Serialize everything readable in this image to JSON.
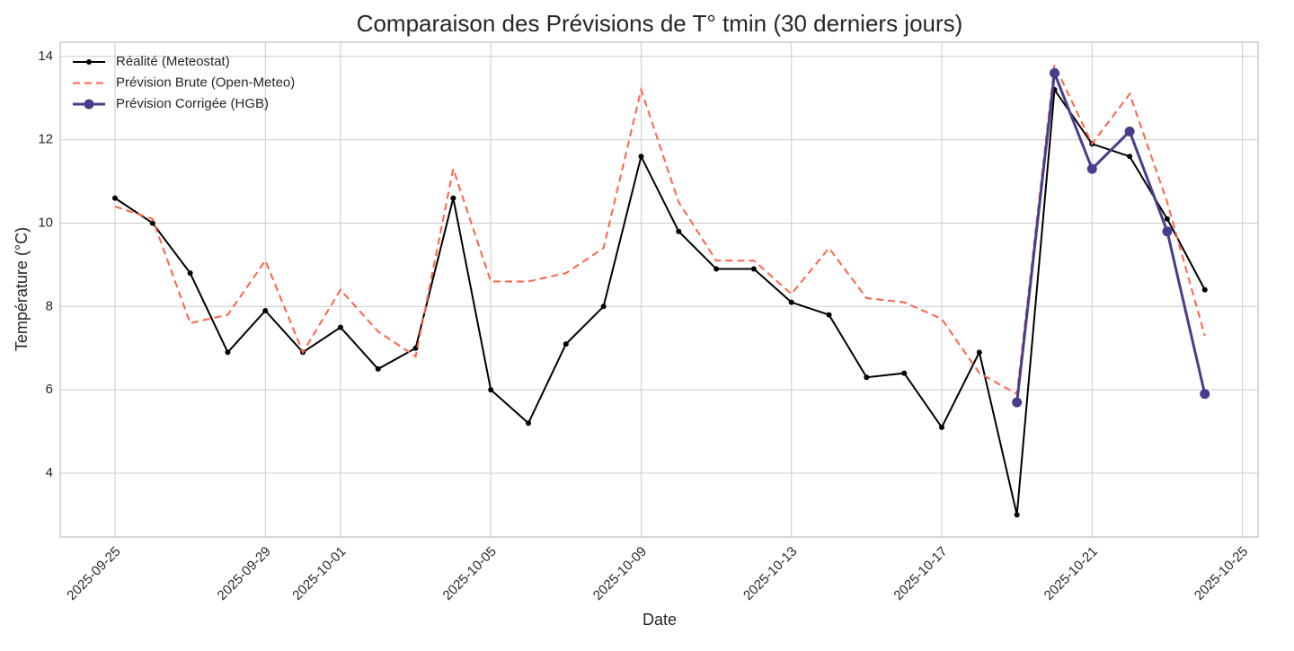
{
  "chart_data": {
    "type": "line",
    "title": "Comparaison des Prévisions de T° tmin (30 derniers jours)",
    "xlabel": "Date",
    "ylabel": "Température (°C)",
    "x": [
      "2025-09-25",
      "2025-09-26",
      "2025-09-27",
      "2025-09-28",
      "2025-09-29",
      "2025-09-30",
      "2025-10-01",
      "2025-10-02",
      "2025-10-03",
      "2025-10-04",
      "2025-10-05",
      "2025-10-06",
      "2025-10-07",
      "2025-10-08",
      "2025-10-09",
      "2025-10-10",
      "2025-10-11",
      "2025-10-12",
      "2025-10-13",
      "2025-10-14",
      "2025-10-15",
      "2025-10-16",
      "2025-10-17",
      "2025-10-18",
      "2025-10-19",
      "2025-10-20",
      "2025-10-21",
      "2025-10-22",
      "2025-10-23",
      "2025-10-24"
    ],
    "series": [
      {
        "name": "Réalité (Meteostat)",
        "color": "#000000",
        "linestyle": "solid",
        "marker": "small",
        "values": [
          10.6,
          10.0,
          8.8,
          6.9,
          7.9,
          6.9,
          7.5,
          6.5,
          7.0,
          10.6,
          6.0,
          5.2,
          7.1,
          8.0,
          11.6,
          9.8,
          8.9,
          8.9,
          8.1,
          7.8,
          6.3,
          6.4,
          5.1,
          6.9,
          3.0,
          13.2,
          11.9,
          11.6,
          10.1,
          8.4
        ]
      },
      {
        "name": "Prévision Brute (Open-Meteo)",
        "color": "#ff6347",
        "linestyle": "dashed",
        "marker": "none",
        "values": [
          10.4,
          10.1,
          7.6,
          7.8,
          9.1,
          6.9,
          8.4,
          7.4,
          6.8,
          11.3,
          8.6,
          8.6,
          8.8,
          9.4,
          13.2,
          10.5,
          9.1,
          9.1,
          8.3,
          9.4,
          8.2,
          8.1,
          7.7,
          6.4,
          5.9,
          13.8,
          11.9,
          13.1,
          10.5,
          7.3
        ]
      },
      {
        "name": "Prévision Corrigée (HGB)",
        "color": "#483d8b",
        "linestyle": "solid",
        "marker": "large",
        "values": [
          null,
          null,
          null,
          null,
          null,
          null,
          null,
          null,
          null,
          null,
          null,
          null,
          null,
          null,
          null,
          null,
          null,
          null,
          null,
          null,
          null,
          null,
          null,
          null,
          5.7,
          13.6,
          11.3,
          12.2,
          9.8,
          5.9
        ]
      }
    ],
    "xlim": [
      "2025-09-23T13:00",
      "2025-10-25T10:00"
    ],
    "xticks": [
      "2025-09-25",
      "2025-09-29",
      "2025-10-01",
      "2025-10-05",
      "2025-10-09",
      "2025-10-13",
      "2025-10-17",
      "2025-10-21",
      "2025-10-25"
    ],
    "ylim": [
      2.47,
      14.34
    ],
    "yticks": [
      4,
      6,
      8,
      10,
      12,
      14
    ],
    "grid": true,
    "legend": "upper-left"
  }
}
